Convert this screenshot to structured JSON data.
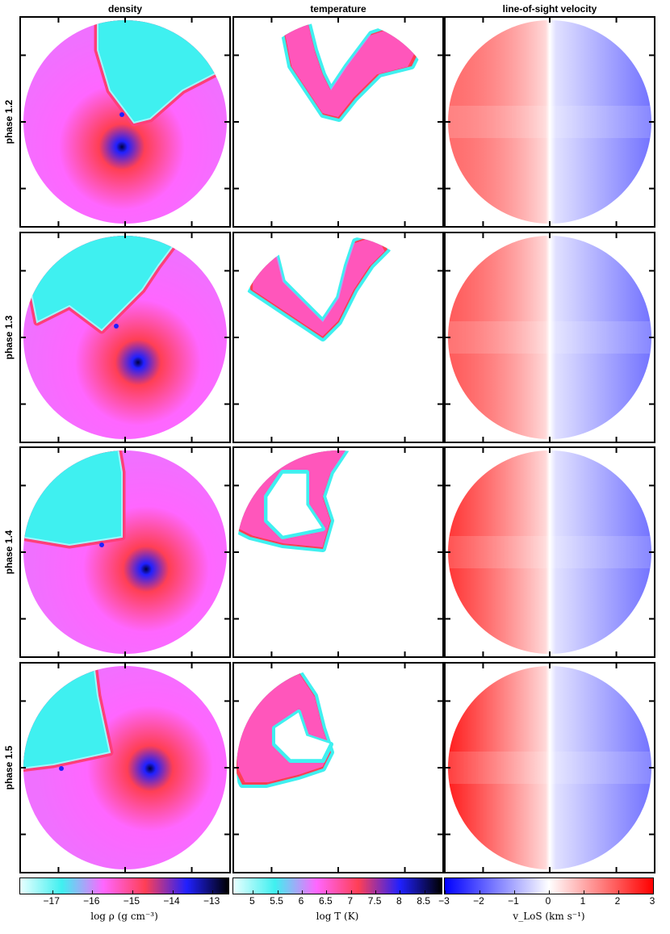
{
  "columns": [
    {
      "key": "density",
      "title": "density"
    },
    {
      "key": "temperature",
      "title": "temperature"
    },
    {
      "key": "velocity",
      "title": "line-of-sight velocity"
    }
  ],
  "rows": [
    {
      "label": "phase 1.2"
    },
    {
      "label": "phase 1.3"
    },
    {
      "label": "phase 1.4"
    },
    {
      "label": "phase 1.5"
    }
  ],
  "colorbars": [
    {
      "label": "log ρ (g cm⁻³)",
      "ticks": [
        "−17",
        "−16",
        "−15",
        "−14",
        "−13"
      ],
      "tick_values": [
        -17,
        -16,
        -15,
        -14,
        -13
      ],
      "range": [
        -17.8,
        -12.6
      ],
      "colors": [
        "#e8ffff",
        "#3ff0f0",
        "#ff66ff",
        "#ff3f55",
        "#2020ff",
        "#000000"
      ]
    },
    {
      "label": "log T (K)",
      "ticks": [
        "5",
        "5.5",
        "6",
        "6.5",
        "7",
        "7.5",
        "8",
        "8.5"
      ],
      "tick_values": [
        5,
        5.5,
        6,
        6.5,
        7,
        7.5,
        8,
        8.5
      ],
      "range": [
        4.6,
        8.85
      ],
      "colors": [
        "#e8ffff",
        "#3ff0f0",
        "#ff66ff",
        "#ff3f55",
        "#2020ff",
        "#000000"
      ]
    },
    {
      "label": "v_LoS (km s⁻¹)",
      "ticks": [
        "−3",
        "−2",
        "−1",
        "0",
        "1",
        "2",
        "3"
      ],
      "tick_values": [
        -3,
        -2,
        -1,
        0,
        1,
        2,
        3
      ],
      "range": [
        -3,
        3
      ],
      "colors": [
        "#0000ff",
        "#ffffff",
        "#ff0000"
      ]
    }
  ],
  "colors": {
    "cyan": "#3ff0f0",
    "magenta": "#ff66ff",
    "red": "#ff3f55",
    "blue": "#2020ff",
    "vel_red": "#ff0000",
    "vel_blue": "#0000ff"
  }
}
